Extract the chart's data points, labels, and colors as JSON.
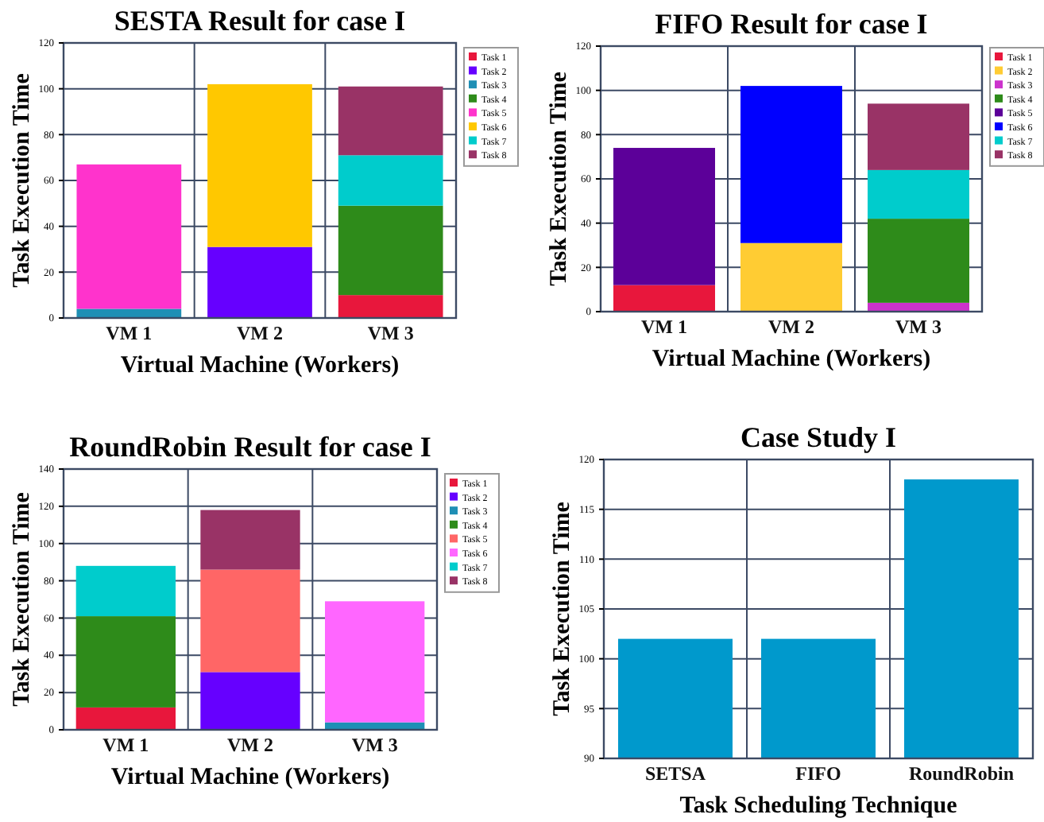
{
  "chart_data": [
    {
      "type": "bar",
      "title": "SESTA Result for case I",
      "xlabel": "Virtual Machine (Workers)",
      "ylabel": "Task Execution Time",
      "categories": [
        "VM 1",
        "VM 2",
        "VM 3"
      ],
      "stacked": true,
      "ylim": [
        0,
        120
      ],
      "yticks": [
        0,
        20,
        40,
        60,
        80,
        100,
        120
      ],
      "grid": true,
      "legend": "right",
      "series": [
        {
          "name": "Task 1",
          "color": "#e8173c",
          "values": [
            null,
            null,
            10
          ]
        },
        {
          "name": "Task 2",
          "color": "#6600ff",
          "values": [
            null,
            31,
            null
          ]
        },
        {
          "name": "Task 3",
          "color": "#1f8fb5",
          "values": [
            4,
            null,
            null
          ]
        },
        {
          "name": "Task 4",
          "color": "#2e8b1a",
          "values": [
            null,
            null,
            39
          ]
        },
        {
          "name": "Task 5",
          "color": "#ff33cc",
          "values": [
            63,
            null,
            null
          ]
        },
        {
          "name": "Task 6",
          "color": "#ffc800",
          "values": [
            null,
            71,
            null
          ]
        },
        {
          "name": "Task 7",
          "color": "#00cccc",
          "values": [
            null,
            null,
            22
          ]
        },
        {
          "name": "Task 8",
          "color": "#993366",
          "values": [
            null,
            null,
            30
          ]
        }
      ]
    },
    {
      "type": "bar",
      "title": "FIFO Result for case I",
      "xlabel": "Virtual Machine (Workers)",
      "ylabel": "Task Execution Time",
      "categories": [
        "VM 1",
        "VM 2",
        "VM 3"
      ],
      "stacked": true,
      "ylim": [
        0,
        120
      ],
      "yticks": [
        0,
        20,
        40,
        60,
        80,
        100,
        120
      ],
      "grid": true,
      "legend": "right",
      "series": [
        {
          "name": "Task 1",
          "color": "#e8173c",
          "values": [
            12,
            null,
            null
          ]
        },
        {
          "name": "Task 2",
          "color": "#ffcc33",
          "values": [
            null,
            31,
            null
          ]
        },
        {
          "name": "Task 3",
          "color": "#cc33cc",
          "values": [
            null,
            null,
            4
          ]
        },
        {
          "name": "Task 4",
          "color": "#2e8b1a",
          "values": [
            null,
            null,
            38
          ]
        },
        {
          "name": "Task 5",
          "color": "#5c0099",
          "values": [
            62,
            null,
            null
          ]
        },
        {
          "name": "Task 6",
          "color": "#0000ff",
          "values": [
            null,
            71,
            null
          ]
        },
        {
          "name": "Task 7",
          "color": "#00cccc",
          "values": [
            null,
            null,
            22
          ]
        },
        {
          "name": "Task 8",
          "color": "#993366",
          "values": [
            null,
            null,
            30
          ]
        }
      ]
    },
    {
      "type": "bar",
      "title": "RoundRobin Result for case I",
      "xlabel": "Virtual Machine (Workers)",
      "ylabel": "Task Execution Time",
      "categories": [
        "VM 1",
        "VM 2",
        "VM 3"
      ],
      "stacked": true,
      "ylim": [
        0,
        140
      ],
      "yticks": [
        0,
        20,
        40,
        60,
        80,
        100,
        120,
        140
      ],
      "grid": true,
      "legend": "right",
      "series": [
        {
          "name": "Task 1",
          "color": "#e8173c",
          "values": [
            12,
            null,
            null
          ]
        },
        {
          "name": "Task 2",
          "color": "#6600ff",
          "values": [
            null,
            31,
            null
          ]
        },
        {
          "name": "Task 3",
          "color": "#1f8fb5",
          "values": [
            null,
            null,
            4
          ]
        },
        {
          "name": "Task 4",
          "color": "#2e8b1a",
          "values": [
            49,
            null,
            null
          ]
        },
        {
          "name": "Task 5",
          "color": "#ff6666",
          "values": [
            null,
            55,
            null
          ]
        },
        {
          "name": "Task 6",
          "color": "#ff66ff",
          "values": [
            null,
            null,
            65
          ]
        },
        {
          "name": "Task 7",
          "color": "#00cccc",
          "values": [
            27,
            null,
            null
          ]
        },
        {
          "name": "Task 8",
          "color": "#993366",
          "values": [
            null,
            32,
            null
          ]
        }
      ]
    },
    {
      "type": "bar",
      "title": "Case Study I",
      "xlabel": "Task Scheduling Technique",
      "ylabel": "Task Execution Time",
      "categories": [
        "SETSA",
        "FIFO",
        "RoundRobin"
      ],
      "ylim": [
        90,
        120
      ],
      "yticks": [
        90,
        95,
        100,
        105,
        110,
        115,
        120
      ],
      "grid": true,
      "series": [
        {
          "color": "#0099cc",
          "values": [
            102,
            102,
            118
          ]
        }
      ]
    }
  ]
}
